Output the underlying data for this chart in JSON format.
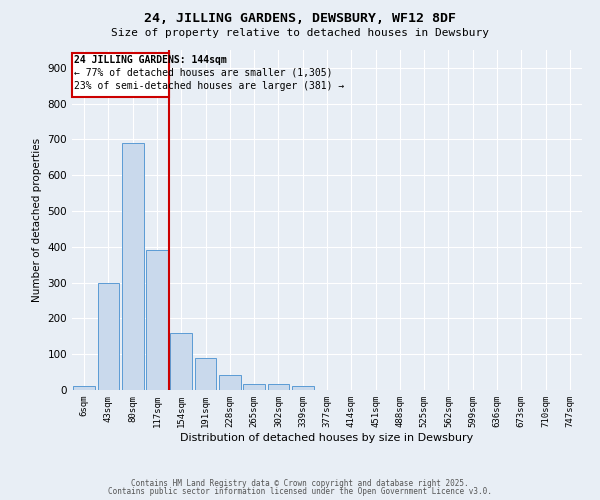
{
  "title": "24, JILLING GARDENS, DEWSBURY, WF12 8DF",
  "subtitle": "Size of property relative to detached houses in Dewsbury",
  "xlabel": "Distribution of detached houses by size in Dewsbury",
  "ylabel": "Number of detached properties",
  "bar_labels": [
    "6sqm",
    "43sqm",
    "80sqm",
    "117sqm",
    "154sqm",
    "191sqm",
    "228sqm",
    "265sqm",
    "302sqm",
    "339sqm",
    "377sqm",
    "414sqm",
    "451sqm",
    "488sqm",
    "525sqm",
    "562sqm",
    "599sqm",
    "636sqm",
    "673sqm",
    "710sqm",
    "747sqm"
  ],
  "bar_values": [
    10,
    300,
    690,
    390,
    160,
    90,
    42,
    17,
    17,
    10,
    0,
    0,
    0,
    0,
    0,
    0,
    0,
    0,
    0,
    0,
    0
  ],
  "bar_color": "#c9d9ec",
  "bar_edgecolor": "#5b9bd5",
  "red_line_x": 3.5,
  "ylim": [
    0,
    950
  ],
  "yticks": [
    0,
    100,
    200,
    300,
    400,
    500,
    600,
    700,
    800,
    900
  ],
  "annotation_title": "24 JILLING GARDENS: 144sqm",
  "annotation_line1": "← 77% of detached houses are smaller (1,305)",
  "annotation_line2": "23% of semi-detached houses are larger (381) →",
  "annotation_box_color": "#ffffff",
  "annotation_box_edgecolor": "#cc0000",
  "background_color": "#e8eef5",
  "grid_color": "#ffffff",
  "footer1": "Contains HM Land Registry data © Crown copyright and database right 2025.",
  "footer2": "Contains public sector information licensed under the Open Government Licence v3.0."
}
